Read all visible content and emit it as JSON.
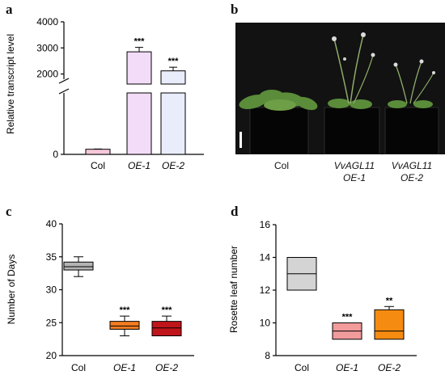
{
  "figure": {
    "panels": {
      "a": "a",
      "b": "b",
      "c": "c",
      "d": "d"
    }
  },
  "chart_data": [
    {
      "panel": "a",
      "type": "bar",
      "ylabel": "Relative transcript level",
      "categories": [
        "Col",
        "OE-1",
        "OE-2"
      ],
      "values": [
        100,
        2850,
        2120
      ],
      "errors": [
        5,
        170,
        140
      ],
      "significance": [
        "",
        "***",
        "***"
      ],
      "colors": [
        "#f5c8da",
        "#f2dcf7",
        "#e9ecfb"
      ],
      "broken_axis": true,
      "yticks": [
        0,
        2000,
        3000,
        4000
      ],
      "ylim": [
        0,
        4000
      ]
    },
    {
      "panel": "b",
      "type": "other",
      "labels": [
        "Col",
        "VvAGL11",
        "OE-1",
        "VvAGL11",
        "OE-2"
      ]
    },
    {
      "panel": "c",
      "type": "box",
      "ylabel": "Number of Days",
      "categories": [
        "Col",
        "OE-1",
        "OE-2"
      ],
      "boxes": [
        {
          "min": 32,
          "q1": 33,
          "median": 33.5,
          "q3": 34.2,
          "max": 35,
          "color": "#b3b3b3",
          "sig": ""
        },
        {
          "min": 23,
          "q1": 24,
          "median": 24.5,
          "q3": 25.2,
          "max": 26,
          "color": "#f47c20",
          "sig": "***"
        },
        {
          "min": 23,
          "q1": 23,
          "median": 24.2,
          "q3": 25.2,
          "max": 26,
          "color": "#c0151b",
          "sig": "***"
        }
      ],
      "yticks": [
        20,
        25,
        30,
        35,
        40
      ],
      "ylim": [
        20,
        40
      ]
    },
    {
      "panel": "d",
      "type": "box",
      "ylabel": "Rosette leaf number",
      "categories": [
        "Col",
        "OE-1",
        "OE-2"
      ],
      "boxes": [
        {
          "min": 12,
          "q1": 12,
          "median": 13,
          "q3": 14,
          "max": 14,
          "color": "#d4d4d4",
          "sig": ""
        },
        {
          "min": 9,
          "q1": 9,
          "median": 9.5,
          "q3": 10,
          "max": 10,
          "color": "#f29b9b",
          "sig": "***"
        },
        {
          "min": 9,
          "q1": 9,
          "median": 9.5,
          "q3": 10.8,
          "max": 11,
          "color": "#f68b11",
          "sig": "**"
        }
      ],
      "yticks": [
        8,
        10,
        12,
        14,
        16
      ],
      "ylim": [
        8,
        16
      ]
    }
  ]
}
